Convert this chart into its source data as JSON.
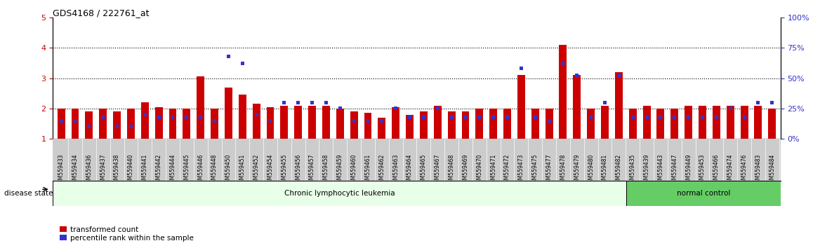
{
  "title": "GDS4168 / 222761_at",
  "samples": [
    "GSM559433",
    "GSM559434",
    "GSM559436",
    "GSM559437",
    "GSM559438",
    "GSM559440",
    "GSM559441",
    "GSM559442",
    "GSM559444",
    "GSM559445",
    "GSM559446",
    "GSM559448",
    "GSM559450",
    "GSM559451",
    "GSM559452",
    "GSM559454",
    "GSM559455",
    "GSM559456",
    "GSM559457",
    "GSM559458",
    "GSM559459",
    "GSM559460",
    "GSM559461",
    "GSM559462",
    "GSM559463",
    "GSM559464",
    "GSM559465",
    "GSM559467",
    "GSM559468",
    "GSM559469",
    "GSM559470",
    "GSM559471",
    "GSM559472",
    "GSM559473",
    "GSM559475",
    "GSM559477",
    "GSM559478",
    "GSM559479",
    "GSM559480",
    "GSM559481",
    "GSM559482",
    "GSM559435",
    "GSM559439",
    "GSM559443",
    "GSM559447",
    "GSM559449",
    "GSM559453",
    "GSM559466",
    "GSM559474",
    "GSM559476",
    "GSM559483",
    "GSM559484"
  ],
  "red_values": [
    2.0,
    2.0,
    1.9,
    2.0,
    1.9,
    2.0,
    2.2,
    2.05,
    2.0,
    2.0,
    3.05,
    2.0,
    2.7,
    2.45,
    2.15,
    2.05,
    2.1,
    2.1,
    2.1,
    2.1,
    2.0,
    1.9,
    1.85,
    1.7,
    2.05,
    1.8,
    1.9,
    2.1,
    1.9,
    1.9,
    2.0,
    2.0,
    2.0,
    3.1,
    2.0,
    2.0,
    4.1,
    3.1,
    2.0,
    2.1,
    3.2,
    2.0,
    2.1,
    2.0,
    2.0,
    2.1,
    2.1,
    2.1,
    2.1,
    2.1,
    2.1,
    2.0
  ],
  "blue_values": [
    15,
    15,
    10,
    18,
    10,
    10,
    20,
    18,
    18,
    18,
    18,
    15,
    68,
    62,
    20,
    15,
    30,
    30,
    30,
    30,
    25,
    15,
    15,
    15,
    25,
    18,
    18,
    25,
    18,
    18,
    18,
    18,
    18,
    58,
    18,
    15,
    62,
    52,
    18,
    30,
    52,
    18,
    18,
    18,
    18,
    18,
    18,
    18,
    25,
    18,
    30,
    30
  ],
  "group1_count": 41,
  "group2_count": 11,
  "group1_label": "Chronic lymphocytic leukemia",
  "group2_label": "normal control",
  "disease_state_label": "disease state",
  "legend_red": "transformed count",
  "legend_blue": "percentile rank within the sample",
  "ylim_left": [
    1,
    5
  ],
  "ylim_right": [
    0,
    100
  ],
  "yticks_left": [
    1,
    2,
    3,
    4,
    5
  ],
  "yticks_right": [
    0,
    25,
    50,
    75,
    100
  ],
  "red_color": "#cc0000",
  "blue_color": "#3333cc",
  "group1_bg": "#e8ffe8",
  "group2_bg": "#66cc66",
  "tick_bg": "#cccccc",
  "bar_width": 0.55
}
